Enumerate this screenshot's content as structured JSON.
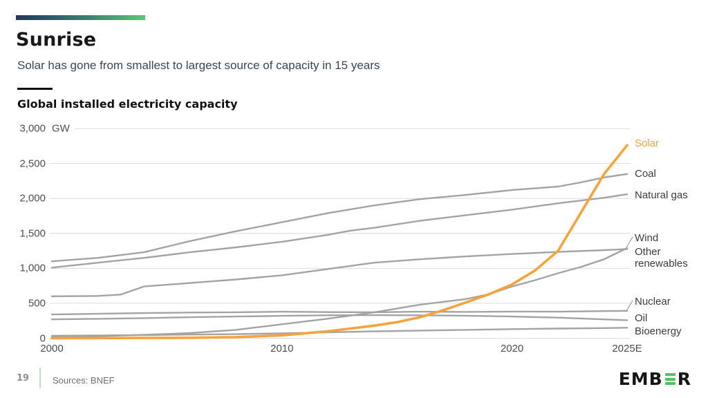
{
  "slide": {
    "title": "Sunrise",
    "subtitle": "Solar has gone from smallest to largest source of capacity in 15 years",
    "page_number": "19",
    "sources": "Sources: BNEF",
    "brand_prefix": "EMB",
    "brand_suffix": "R"
  },
  "chart_data": {
    "type": "line",
    "title": "Global installed electricity capacity",
    "unit": "GW",
    "xlim": [
      2000,
      2025
    ],
    "ylim": [
      0,
      3000
    ],
    "grid": "horizontal-only",
    "legend_position": "right-of-line-ends",
    "x_ticks": [
      {
        "value": 2000,
        "label": "2000"
      },
      {
        "value": 2010,
        "label": "2010"
      },
      {
        "value": 2020,
        "label": "2020"
      },
      {
        "value": 2025,
        "label": "2025E"
      }
    ],
    "y_ticks": [
      {
        "value": 0,
        "label": "0"
      },
      {
        "value": 500,
        "label": "500"
      },
      {
        "value": 1000,
        "label": "1,000"
      },
      {
        "value": 1500,
        "label": "1,500"
      },
      {
        "value": 2000,
        "label": "2,000"
      },
      {
        "value": 2500,
        "label": "2,500"
      },
      {
        "value": 3000,
        "label": "3,000"
      }
    ],
    "colors": {
      "highlight": "#F5A43C",
      "base_line": "#A3A3A3",
      "grid": "#DCDCDC",
      "axis_text": "#4d4d4d",
      "legend_text": "#3c3c3c"
    },
    "series": [
      {
        "key": "coal",
        "label": "Coal",
        "emphasis": false,
        "points": [
          [
            2000,
            1100
          ],
          [
            2002,
            1150
          ],
          [
            2004,
            1230
          ],
          [
            2006,
            1390
          ],
          [
            2008,
            1530
          ],
          [
            2010,
            1660
          ],
          [
            2012,
            1790
          ],
          [
            2014,
            1900
          ],
          [
            2016,
            1990
          ],
          [
            2018,
            2050
          ],
          [
            2020,
            2120
          ],
          [
            2022,
            2170
          ],
          [
            2023,
            2230
          ],
          [
            2024,
            2300
          ],
          [
            2025,
            2350
          ]
        ]
      },
      {
        "key": "natural_gas",
        "label": "Natural gas",
        "emphasis": false,
        "points": [
          [
            2000,
            1010
          ],
          [
            2002,
            1080
          ],
          [
            2004,
            1150
          ],
          [
            2006,
            1230
          ],
          [
            2008,
            1300
          ],
          [
            2010,
            1380
          ],
          [
            2012,
            1480
          ],
          [
            2013,
            1540
          ],
          [
            2014,
            1580
          ],
          [
            2016,
            1680
          ],
          [
            2018,
            1760
          ],
          [
            2020,
            1840
          ],
          [
            2022,
            1930
          ],
          [
            2024,
            2010
          ],
          [
            2025,
            2060
          ]
        ]
      },
      {
        "key": "wind",
        "label": "Wind",
        "emphasis": false,
        "points": [
          [
            2000,
            17
          ],
          [
            2002,
            30
          ],
          [
            2004,
            48
          ],
          [
            2006,
            74
          ],
          [
            2008,
            120
          ],
          [
            2010,
            200
          ],
          [
            2012,
            280
          ],
          [
            2014,
            370
          ],
          [
            2016,
            480
          ],
          [
            2018,
            560
          ],
          [
            2019,
            630
          ],
          [
            2020,
            740
          ],
          [
            2021,
            830
          ],
          [
            2022,
            930
          ],
          [
            2023,
            1020
          ],
          [
            2024,
            1130
          ],
          [
            2025,
            1290
          ]
        ]
      },
      {
        "key": "other_renewables",
        "label": "Other renewables",
        "emphasis": false,
        "points": [
          [
            2000,
            600
          ],
          [
            2001,
            602
          ],
          [
            2002,
            605
          ],
          [
            2003,
            625
          ],
          [
            2004,
            740
          ],
          [
            2005,
            765
          ],
          [
            2006,
            790
          ],
          [
            2008,
            840
          ],
          [
            2010,
            900
          ],
          [
            2012,
            990
          ],
          [
            2014,
            1080
          ],
          [
            2016,
            1130
          ],
          [
            2018,
            1170
          ],
          [
            2020,
            1205
          ],
          [
            2022,
            1235
          ],
          [
            2024,
            1260
          ],
          [
            2025,
            1275
          ]
        ]
      },
      {
        "key": "nuclear",
        "label": "Nuclear",
        "emphasis": false,
        "points": [
          [
            2000,
            340
          ],
          [
            2002,
            350
          ],
          [
            2004,
            360
          ],
          [
            2006,
            368
          ],
          [
            2008,
            372
          ],
          [
            2010,
            380
          ],
          [
            2012,
            374
          ],
          [
            2014,
            372
          ],
          [
            2016,
            380
          ],
          [
            2018,
            377
          ],
          [
            2020,
            382
          ],
          [
            2022,
            380
          ],
          [
            2024,
            388
          ],
          [
            2025,
            392
          ]
        ]
      },
      {
        "key": "oil",
        "label": "Oil",
        "emphasis": false,
        "points": [
          [
            2000,
            270
          ],
          [
            2002,
            278
          ],
          [
            2004,
            288
          ],
          [
            2006,
            300
          ],
          [
            2008,
            310
          ],
          [
            2010,
            320
          ],
          [
            2012,
            328
          ],
          [
            2014,
            330
          ],
          [
            2016,
            328
          ],
          [
            2018,
            322
          ],
          [
            2020,
            310
          ],
          [
            2022,
            295
          ],
          [
            2023,
            283
          ],
          [
            2024,
            270
          ],
          [
            2025,
            258
          ]
        ]
      },
      {
        "key": "bioenergy",
        "label": "Bioenergy",
        "emphasis": false,
        "points": [
          [
            2000,
            35
          ],
          [
            2004,
            45
          ],
          [
            2008,
            58
          ],
          [
            2010,
            70
          ],
          [
            2012,
            85
          ],
          [
            2014,
            98
          ],
          [
            2016,
            110
          ],
          [
            2018,
            120
          ],
          [
            2020,
            130
          ],
          [
            2022,
            138
          ],
          [
            2024,
            145
          ],
          [
            2025,
            150
          ]
        ]
      },
      {
        "key": "solar",
        "label": "Solar",
        "emphasis": true,
        "points": [
          [
            2000,
            1
          ],
          [
            2002,
            2
          ],
          [
            2004,
            4
          ],
          [
            2006,
            7
          ],
          [
            2008,
            16
          ],
          [
            2010,
            42
          ],
          [
            2012,
            100
          ],
          [
            2014,
            180
          ],
          [
            2015,
            230
          ],
          [
            2016,
            300
          ],
          [
            2017,
            400
          ],
          [
            2018,
            512
          ],
          [
            2019,
            630
          ],
          [
            2020,
            770
          ],
          [
            2021,
            970
          ],
          [
            2022,
            1250
          ],
          [
            2023,
            1800
          ],
          [
            2024,
            2350
          ],
          [
            2025,
            2760
          ]
        ]
      }
    ]
  }
}
